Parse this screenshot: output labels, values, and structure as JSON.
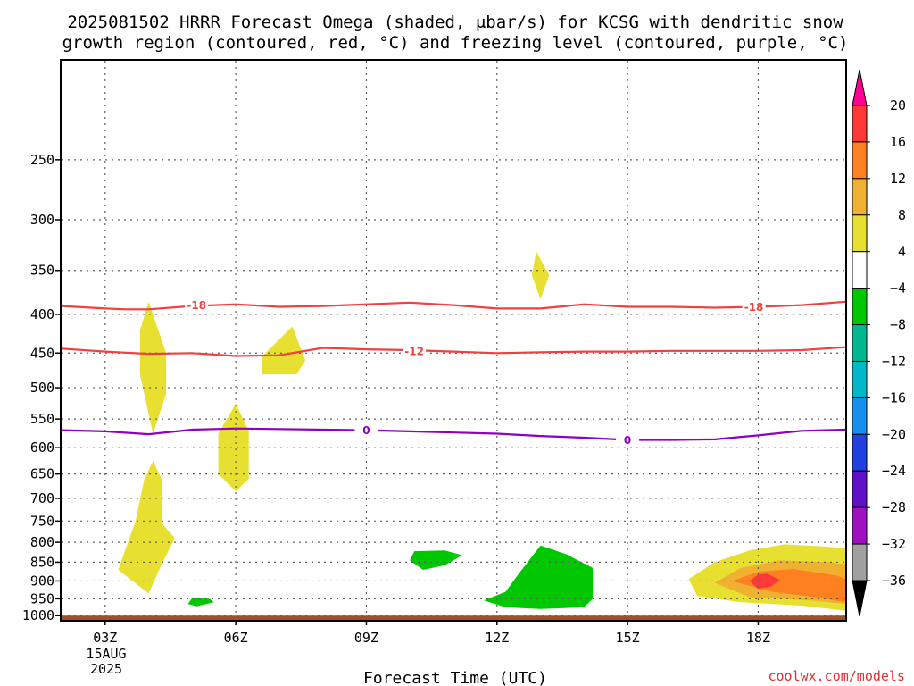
{
  "chart_data": {
    "type": "heatmap",
    "title_line1": "2025081502 HRRR Forecast Omega (shaded, μbar/s) for KCSG with dendritic snow",
    "title_line2": "growth region (contoured, red, °C) and freezing level (contoured, purple, °C)",
    "xlabel": "Forecast Time (UTC)",
    "ylabel": "",
    "x_axis": {
      "range_hours": [
        2,
        20
      ],
      "ticks": [
        3,
        6,
        9,
        12,
        15,
        18
      ],
      "tick_labels": [
        "03Z",
        "06Z",
        "09Z",
        "12Z",
        "15Z",
        "18Z"
      ],
      "first_date_label_day": "15AUG",
      "first_date_label_year": "2025"
    },
    "y_axis": {
      "scale": "log-pressure",
      "range_hPa": [
        1013,
        185
      ],
      "ticks": [
        250,
        300,
        350,
        400,
        450,
        500,
        550,
        600,
        650,
        700,
        750,
        800,
        850,
        900,
        950,
        1000
      ],
      "tick_labels": [
        "250",
        "300",
        "350",
        "400",
        "450",
        "500",
        "550",
        "600",
        "650",
        "700",
        "750",
        "800",
        "850",
        "900",
        "950",
        "1000"
      ]
    },
    "grid": true,
    "colorbar": {
      "labels": [
        "20",
        "16",
        "12",
        "8",
        "4",
        "−4",
        "−8",
        "−12",
        "−16",
        "−20",
        "−24",
        "−28",
        "−32",
        "−36"
      ],
      "colors": [
        "#ff0090",
        "#ff3838",
        "#ff8020",
        "#f0b030",
        "#e8e030",
        "#ffffff",
        "#00c800",
        "#00b890",
        "#00b8c8",
        "#1890f0",
        "#2040e0",
        "#6010c8",
        "#a010c0",
        "#a0a0a0",
        "#000000"
      ]
    },
    "contours": [
      {
        "kind": "dgz",
        "label": "-18",
        "color": "#f04040",
        "points": [
          [
            2,
            390
          ],
          [
            3,
            393
          ],
          [
            3.5,
            394
          ],
          [
            4,
            394
          ],
          [
            5,
            390
          ],
          [
            6,
            388
          ],
          [
            7,
            391
          ],
          [
            8,
            390
          ],
          [
            9,
            388
          ],
          [
            10,
            386
          ],
          [
            11,
            389
          ],
          [
            12,
            393
          ],
          [
            13,
            393
          ],
          [
            14,
            388
          ],
          [
            15,
            391
          ],
          [
            16,
            391
          ],
          [
            17,
            392
          ],
          [
            18,
            391
          ],
          [
            19,
            389
          ],
          [
            20,
            385
          ]
        ],
        "label_at": [
          [
            5.1,
            389
          ],
          [
            17.9,
            391
          ]
        ]
      },
      {
        "kind": "dgz",
        "label": "-12",
        "color": "#f04040",
        "points": [
          [
            2,
            444
          ],
          [
            3,
            448
          ],
          [
            4,
            451
          ],
          [
            5,
            450
          ],
          [
            6,
            454
          ],
          [
            7,
            453
          ],
          [
            8,
            443
          ],
          [
            9,
            445
          ],
          [
            10,
            446
          ],
          [
            11,
            448
          ],
          [
            12,
            450
          ],
          [
            13,
            449
          ],
          [
            14,
            448
          ],
          [
            15,
            448
          ],
          [
            16,
            447
          ],
          [
            17,
            447
          ],
          [
            18,
            447
          ],
          [
            19,
            446
          ],
          [
            20,
            442
          ]
        ],
        "label_at": [
          [
            10.1,
            447
          ]
        ]
      },
      {
        "kind": "freezing",
        "label": "0",
        "color": "#9000c0",
        "points": [
          [
            2,
            569
          ],
          [
            3,
            571
          ],
          [
            4,
            576
          ],
          [
            5,
            568
          ],
          [
            6,
            566
          ],
          [
            7,
            567
          ],
          [
            8,
            568
          ],
          [
            9,
            569
          ],
          [
            10,
            571
          ],
          [
            11,
            573
          ],
          [
            12,
            575
          ],
          [
            13,
            579
          ],
          [
            14,
            582
          ],
          [
            15,
            586
          ],
          [
            16,
            586
          ],
          [
            17,
            585
          ],
          [
            18,
            578
          ],
          [
            19,
            570
          ],
          [
            20,
            568
          ]
        ],
        "label_at": [
          [
            9,
            569
          ],
          [
            15,
            586
          ]
        ]
      }
    ],
    "shaded_regions": [
      {
        "value_band": "4 to 8",
        "color": "#e8e030",
        "points": [
          [
            4.0,
            385
          ],
          [
            4.4,
            450
          ],
          [
            4.4,
            510
          ],
          [
            4.1,
            575
          ],
          [
            3.8,
            480
          ],
          [
            3.8,
            420
          ]
        ]
      },
      {
        "value_band": "4 to 8",
        "color": "#e8e030",
        "points": [
          [
            4.1,
            625
          ],
          [
            4.3,
            660
          ],
          [
            4.3,
            755
          ],
          [
            4.6,
            790
          ],
          [
            4.3,
            855
          ],
          [
            4.0,
            935
          ],
          [
            3.3,
            870
          ],
          [
            3.7,
            750
          ],
          [
            3.9,
            660
          ]
        ]
      },
      {
        "value_band": "4 to 8",
        "color": "#e8e030",
        "points": [
          [
            7.3,
            415
          ],
          [
            7.6,
            460
          ],
          [
            7.4,
            480
          ],
          [
            6.6,
            480
          ],
          [
            6.6,
            455
          ]
        ]
      },
      {
        "value_band": "4 to 8",
        "color": "#e8e030",
        "points": [
          [
            6.0,
            525
          ],
          [
            6.3,
            570
          ],
          [
            6.3,
            660
          ],
          [
            6.0,
            685
          ],
          [
            5.6,
            650
          ],
          [
            5.6,
            575
          ]
        ]
      },
      {
        "value_band": "4 to 8",
        "color": "#e8e030",
        "points": [
          [
            12.9,
            330
          ],
          [
            13.2,
            355
          ],
          [
            13.0,
            382
          ],
          [
            12.8,
            355
          ]
        ]
      },
      {
        "value_band": "4 to 8",
        "color": "#e8e030",
        "points": [
          [
            16.4,
            895
          ],
          [
            17,
            850
          ],
          [
            17.8,
            820
          ],
          [
            18.6,
            805
          ],
          [
            19.5,
            810
          ],
          [
            20,
            815
          ],
          [
            20,
            985
          ],
          [
            19,
            970
          ],
          [
            17.6,
            960
          ],
          [
            16.6,
            942
          ]
        ]
      },
      {
        "value_band": "8 to 12",
        "color": "#f0b030",
        "points": [
          [
            17.0,
            905
          ],
          [
            17.6,
            865
          ],
          [
            18.5,
            845
          ],
          [
            19.6,
            850
          ],
          [
            20,
            855
          ],
          [
            20,
            965
          ],
          [
            19.2,
            955
          ],
          [
            17.8,
            945
          ]
        ]
      },
      {
        "value_band": "12 to 16",
        "color": "#ff8020",
        "points": [
          [
            17.4,
            900
          ],
          [
            18,
            875
          ],
          [
            18.8,
            868
          ],
          [
            19.8,
            885
          ],
          [
            20,
            895
          ],
          [
            20,
            960
          ],
          [
            19.3,
            945
          ],
          [
            18.3,
            930
          ]
        ]
      },
      {
        "value_band": "16 to 20",
        "color": "#ff3838",
        "points": [
          [
            17.8,
            900
          ],
          [
            18.0,
            883
          ],
          [
            18.2,
            880
          ],
          [
            18.5,
            897
          ],
          [
            18.3,
            915
          ],
          [
            18.0,
            922
          ]
        ]
      },
      {
        "value_band": "-4 to -8",
        "color": "#00c800",
        "points": [
          [
            10.8,
            820
          ],
          [
            11.2,
            832
          ],
          [
            10.8,
            858
          ],
          [
            10.3,
            870
          ],
          [
            10.0,
            845
          ],
          [
            10.1,
            822
          ]
        ]
      },
      {
        "value_band": "-4 to -8",
        "color": "#00c800",
        "points": [
          [
            5.4,
            950
          ],
          [
            5.5,
            960
          ],
          [
            5.1,
            972
          ],
          [
            4.9,
            965
          ],
          [
            5.0,
            948
          ]
        ]
      },
      {
        "value_band": "-4 to -8",
        "color": "#00c800",
        "points": [
          [
            13.0,
            808
          ],
          [
            13.6,
            830
          ],
          [
            14.2,
            865
          ],
          [
            14.2,
            950
          ],
          [
            14.0,
            975
          ],
          [
            13.0,
            980
          ],
          [
            12.2,
            975
          ],
          [
            11.7,
            955
          ],
          [
            12.2,
            930
          ],
          [
            12.5,
            880
          ]
        ]
      }
    ],
    "ground": {
      "color": "#a05028",
      "from_hPa": 1013,
      "to_hPa": 1000
    }
  },
  "watermark": "coolwx.com/models"
}
